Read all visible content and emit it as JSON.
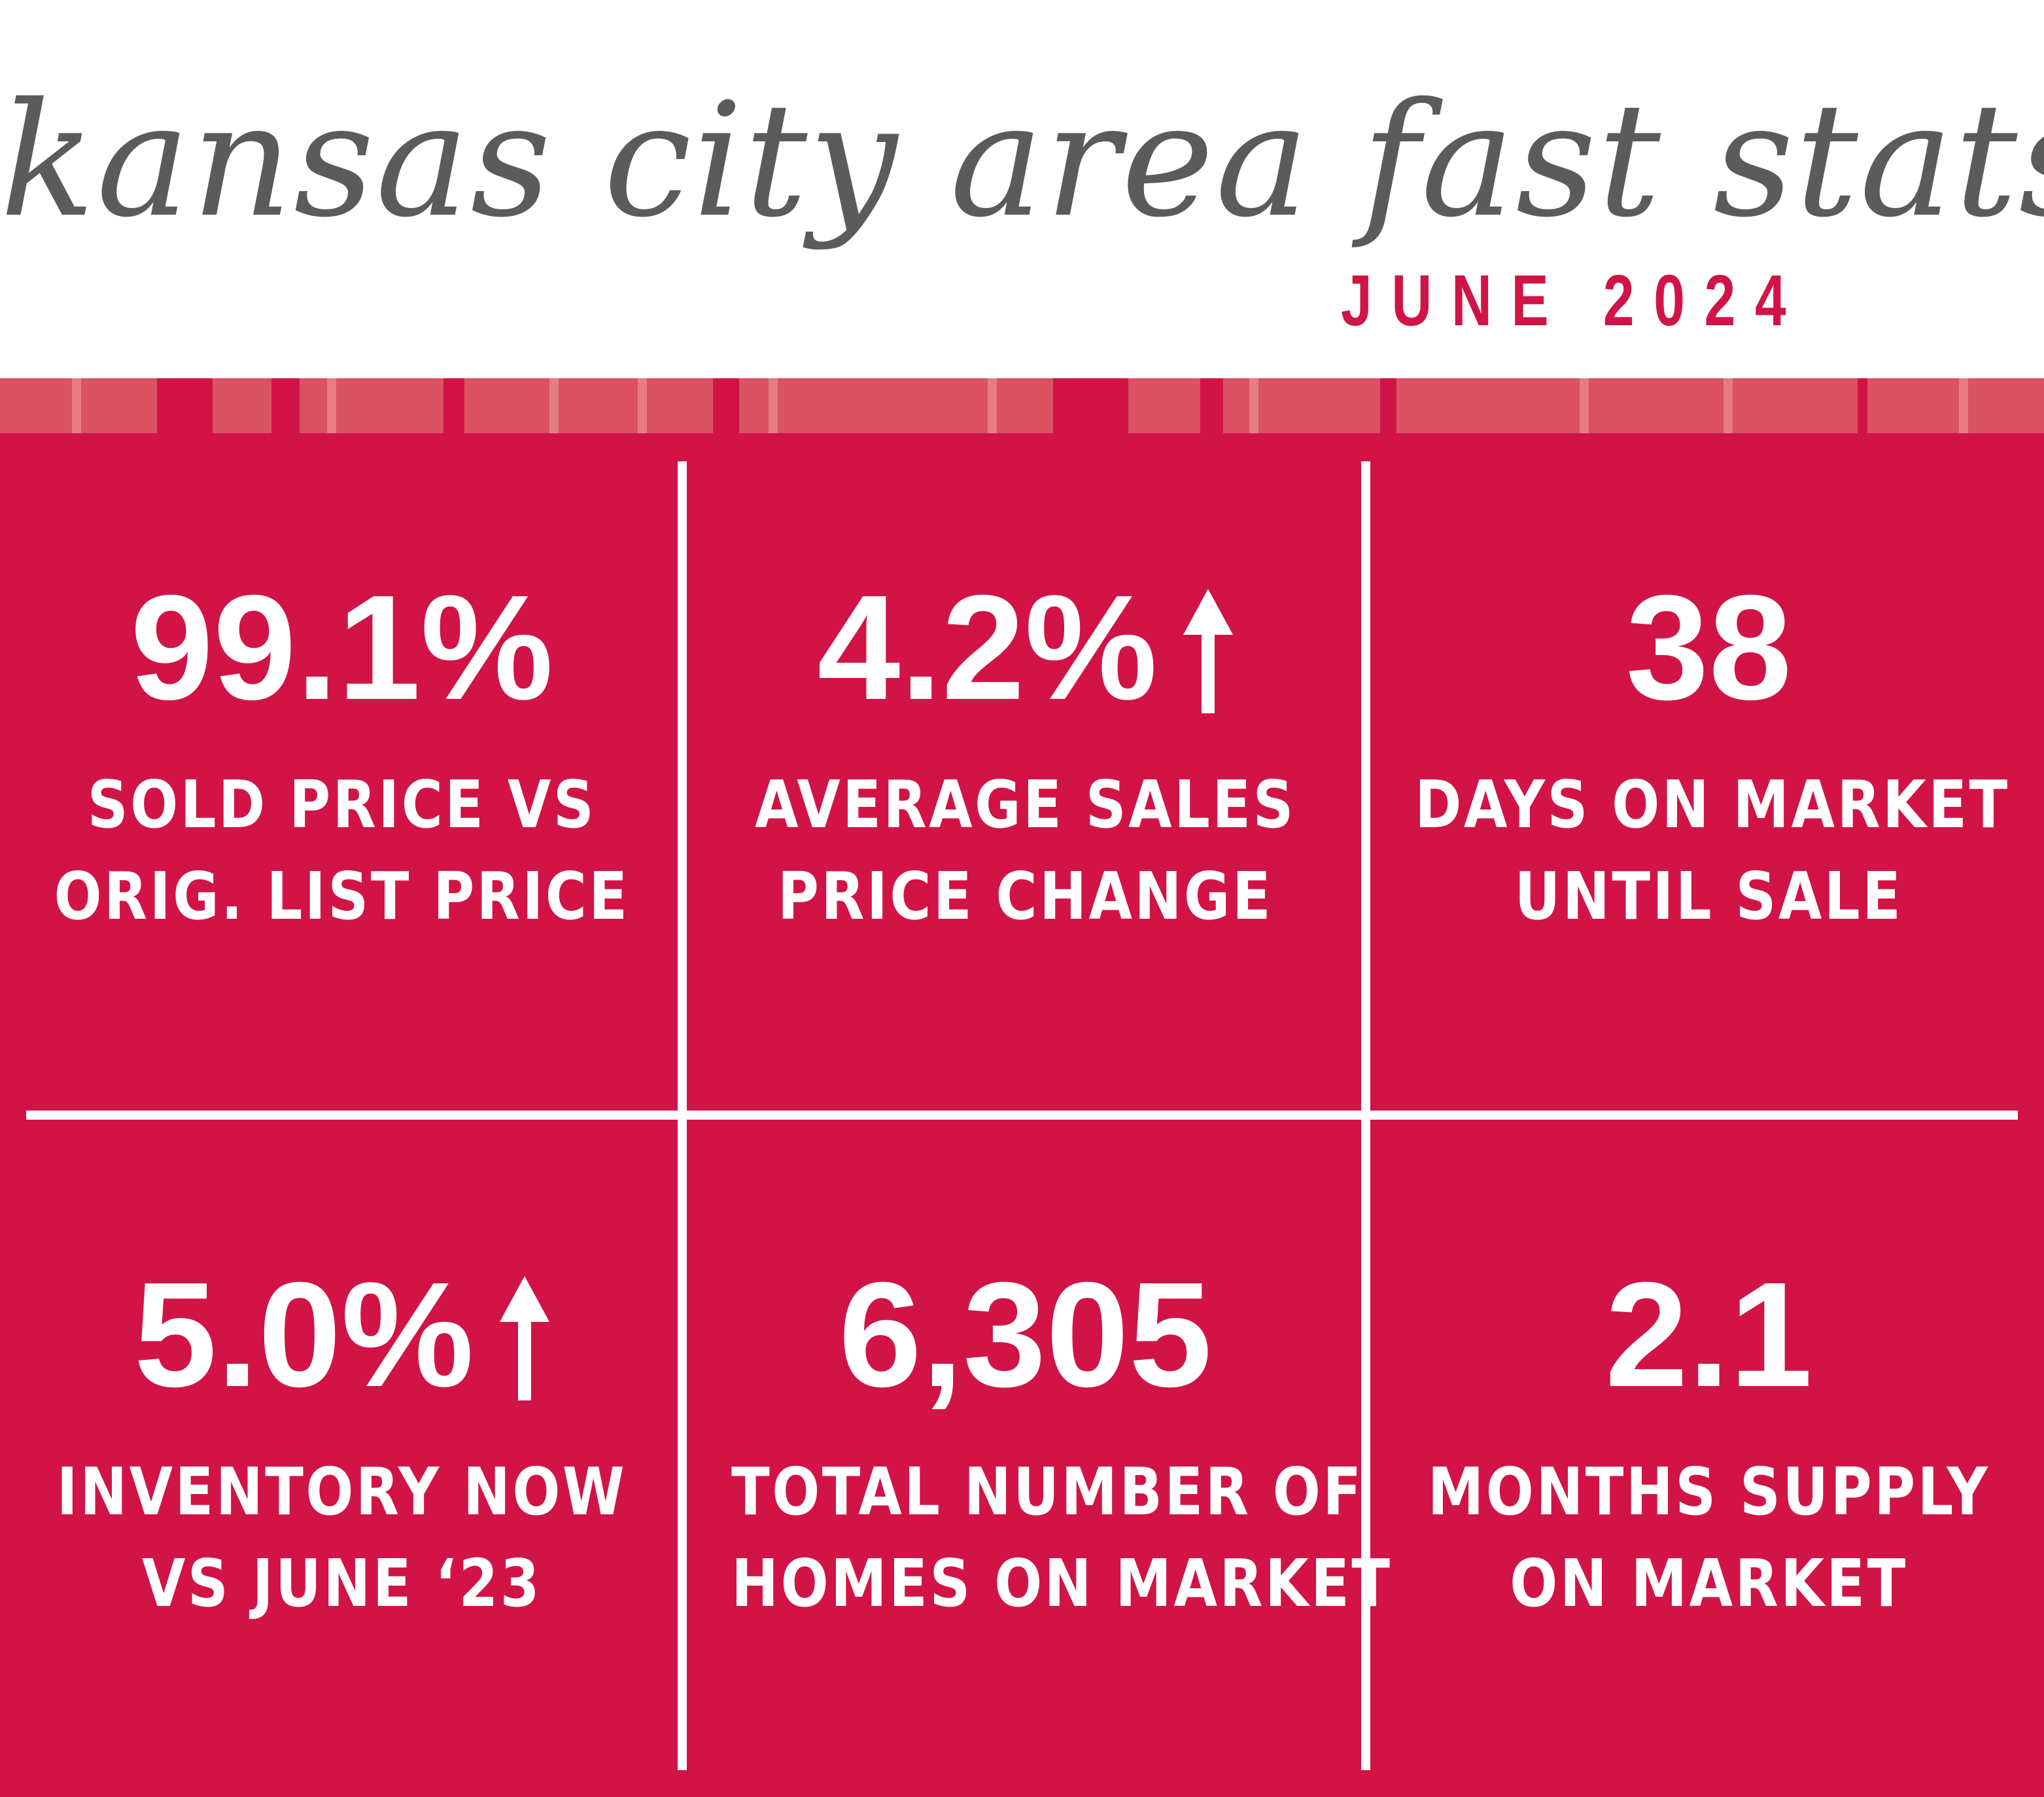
{
  "header": {
    "title": "kansas city area fast stats",
    "subtitle": "JUNE 2024"
  },
  "colors": {
    "brand": "#d11445",
    "stripe_light": "#da5263",
    "title_gray": "#5b5b5b",
    "text_white": "#ffffff"
  },
  "stats": [
    {
      "value": "99.1%",
      "label_line1": "SOLD PRICE VS",
      "label_line2": "ORIG. LIST PRICE",
      "trend_icon": ""
    },
    {
      "value": "4.2%",
      "label_line1": "AVERAGE SALES",
      "label_line2": "PRICE CHANGE",
      "trend_icon": "arrow-up-icon"
    },
    {
      "value": "38",
      "label_line1": "DAYS ON MARKET",
      "label_line2": "UNTIL SALE",
      "trend_icon": ""
    },
    {
      "value": "5.0%",
      "label_line1": "INVENTORY NOW",
      "label_line2": "VS JUNE ‘23",
      "trend_icon": "arrow-up-icon"
    },
    {
      "value": "6,305",
      "label_line1": "TOTAL NUMBER OF",
      "label_line2": "HOMES ON MARKET",
      "trend_icon": ""
    },
    {
      "value": "2.1",
      "label_line1": "MONTHS SUPPLY",
      "label_line2": "ON MARKET",
      "trend_icon": ""
    }
  ]
}
